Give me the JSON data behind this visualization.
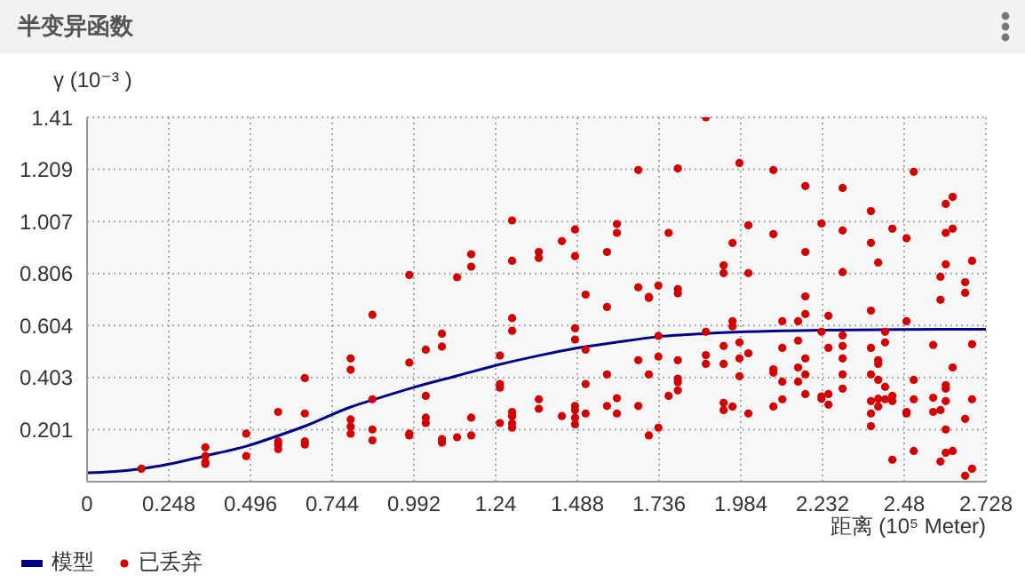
{
  "chart_data": {
    "type": "scatter",
    "title": "半变异函数",
    "ylabel": "γ (10⁻³ )",
    "xlabel": "距离 (10⁵ Meter)",
    "xlim": [
      0,
      2.728
    ],
    "xticks": [
      0,
      0.248,
      0.496,
      0.744,
      0.992,
      1.24,
      1.488,
      1.736,
      1.984,
      2.232,
      2.48,
      2.728
    ],
    "ylim": [
      0,
      1.41
    ],
    "yticks": [
      {
        "value": 0.2014,
        "label": "0.201"
      },
      {
        "value": 0.4029,
        "label": "0.403"
      },
      {
        "value": 0.6043,
        "label": "0.604"
      },
      {
        "value": 0.8057,
        "label": "0.806"
      },
      {
        "value": 1.0071,
        "label": "1.007"
      },
      {
        "value": 1.2086,
        "label": "1.209"
      },
      1.41
    ],
    "grid": true,
    "legend": "bottom left",
    "series": [
      {
        "name": "模型",
        "type": "line",
        "marker": "none",
        "color": "#00008b",
        "x": [
          0,
          0.075,
          0.165,
          0.248,
          0.359,
          0.483,
          0.58,
          0.661,
          0.8,
          0.866,
          0.992,
          1.124,
          1.253,
          1.371,
          1.481,
          1.608,
          1.734,
          1.873,
          2.0,
          2.229,
          2.48,
          2.728
        ],
        "values": [
          0.034,
          0.039,
          0.05,
          0.068,
          0.1,
          0.137,
          0.178,
          0.215,
          0.289,
          0.316,
          0.365,
          0.41,
          0.454,
          0.488,
          0.516,
          0.54,
          0.561,
          0.573,
          0.58,
          0.586,
          0.589,
          0.59
        ]
      },
      {
        "name": "已丢弃",
        "marker": "circle",
        "color": "#d40000",
        "x": [
          0.165,
          0.359,
          0.359,
          0.359,
          0.359,
          0.483,
          0.483,
          0.58,
          0.58,
          0.58,
          0.58,
          0.661,
          0.661,
          0.661,
          0.661,
          0.8,
          0.8,
          0.8,
          0.8,
          0.8,
          0.866,
          0.866,
          0.866,
          0.866,
          0.978,
          0.978,
          0.978,
          0.978,
          1.028,
          1.028,
          1.028,
          1.028,
          1.077,
          1.077,
          1.077,
          1.077,
          1.123,
          1.123,
          1.166,
          1.166,
          1.166,
          1.166,
          1.253,
          1.253,
          1.253,
          1.253,
          1.29,
          1.29,
          1.29,
          1.29,
          1.29,
          1.29,
          1.29,
          1.29,
          1.371,
          1.371,
          1.371,
          1.371,
          1.441,
          1.441,
          1.481,
          1.481,
          1.481,
          1.481,
          1.481,
          1.481,
          1.481,
          1.481,
          1.513,
          1.513,
          1.513,
          1.513,
          1.578,
          1.578,
          1.578,
          1.578,
          1.608,
          1.608,
          1.608,
          1.608,
          1.673,
          1.673,
          1.673,
          1.673,
          1.705,
          1.705,
          1.705,
          1.705,
          1.734,
          1.734,
          1.734,
          1.734,
          1.765,
          1.765,
          1.793,
          1.793,
          1.793,
          1.793,
          1.793,
          1.793,
          1.793,
          1.878,
          1.878,
          1.878,
          1.878,
          1.932,
          1.932,
          1.932,
          1.932,
          1.932,
          1.932,
          1.959,
          1.959,
          1.959,
          1.959,
          1.98,
          1.98,
          1.98,
          1.98,
          2.007,
          2.007,
          2.007,
          2.007,
          2.083,
          2.083,
          2.083,
          2.083,
          2.083,
          2.11,
          2.11,
          2.11,
          2.11,
          2.158,
          2.158,
          2.158,
          2.158,
          2.18,
          2.18,
          2.18,
          2.18,
          2.18,
          2.18,
          2.18,
          2.229,
          2.229,
          2.229,
          2.229,
          2.25,
          2.25,
          2.25,
          2.25,
          2.293,
          2.293,
          2.293,
          2.293,
          2.293,
          2.293,
          2.293,
          2.293,
          2.379,
          2.379,
          2.379,
          2.379,
          2.379,
          2.379,
          2.379,
          2.379,
          2.401,
          2.401,
          2.401,
          2.401,
          2.401,
          2.401,
          2.422,
          2.422,
          2.422,
          2.422,
          2.444,
          2.444,
          2.444,
          2.444,
          2.487,
          2.487,
          2.487,
          2.487,
          2.509,
          2.509,
          2.509,
          2.509,
          2.568,
          2.568,
          2.568,
          2.59,
          2.59,
          2.59,
          2.59,
          2.606,
          2.606,
          2.606,
          2.606,
          2.606,
          2.606,
          2.606,
          2.606,
          2.627,
          2.627,
          2.627,
          2.627,
          2.665,
          2.665,
          2.665,
          2.665,
          2.686,
          2.686,
          2.686,
          2.686
        ],
        "values": [
          0.05,
          0.133,
          0.099,
          0.076,
          0.069,
          0.186,
          0.099,
          0.27,
          0.156,
          0.144,
          0.126,
          0.401,
          0.264,
          0.156,
          0.144,
          0.477,
          0.433,
          0.241,
          0.213,
          0.186,
          0.646,
          0.319,
          0.202,
          0.16,
          0.8,
          0.461,
          0.186,
          0.179,
          0.511,
          0.332,
          0.248,
          0.227,
          0.573,
          0.523,
          0.165,
          0.151,
          0.791,
          0.172,
          0.88,
          0.832,
          0.248,
          0.179,
          0.488,
          0.378,
          0.364,
          0.227,
          1.011,
          0.855,
          0.633,
          0.584,
          0.27,
          0.254,
          0.225,
          0.209,
          0.889,
          0.866,
          0.319,
          0.282,
          0.931,
          0.254,
          0.976,
          0.873,
          0.594,
          0.55,
          0.293,
          0.277,
          0.248,
          0.222,
          0.724,
          0.511,
          0.378,
          0.264,
          0.889,
          0.676,
          0.415,
          0.293,
          0.997,
          0.963,
          0.323,
          0.264,
          1.206,
          0.752,
          0.47,
          0.293,
          0.715,
          0.711,
          0.415,
          0.179,
          0.759,
          0.564,
          0.484,
          0.209,
          0.963,
          0.332,
          1.212,
          0.745,
          0.729,
          0.47,
          0.399,
          0.385,
          0.353,
          1.41,
          0.58,
          0.49,
          0.456,
          0.837,
          0.807,
          0.525,
          0.456,
          0.305,
          0.277,
          0.924,
          0.621,
          0.601,
          0.291,
          1.233,
          0.539,
          0.477,
          0.408,
          0.992,
          0.807,
          0.497,
          0.264,
          1.206,
          0.958,
          0.435,
          0.422,
          0.291,
          0.621,
          0.518,
          0.387,
          0.319,
          0.621,
          0.546,
          0.442,
          0.387,
          1.144,
          0.889,
          0.717,
          0.649,
          0.477,
          0.415,
          0.339,
          0.999,
          0.58,
          0.33,
          0.321,
          0.642,
          0.518,
          0.339,
          0.298,
          1.137,
          0.972,
          0.811,
          0.566,
          0.525,
          0.477,
          0.415,
          0.36,
          1.047,
          0.924,
          0.662,
          0.518,
          0.415,
          0.312,
          0.264,
          0.215,
          0.848,
          0.47,
          0.456,
          0.394,
          0.321,
          0.291,
          0.58,
          0.539,
          0.367,
          0.319,
          0.979,
          0.332,
          0.312,
          0.085,
          0.942,
          0.621,
          0.27,
          0.264,
          1.199,
          0.394,
          0.319,
          0.119,
          0.529,
          0.325,
          0.27,
          0.793,
          0.704,
          0.277,
          0.078,
          1.075,
          0.963,
          0.841,
          0.374,
          0.36,
          0.312,
          0.202,
          0.112,
          1.102,
          0.979,
          0.442,
          0.119,
          0.772,
          0.731,
          0.243,
          0.023,
          0.855,
          0.532,
          0.319,
          0.05
        ]
      }
    ]
  }
}
